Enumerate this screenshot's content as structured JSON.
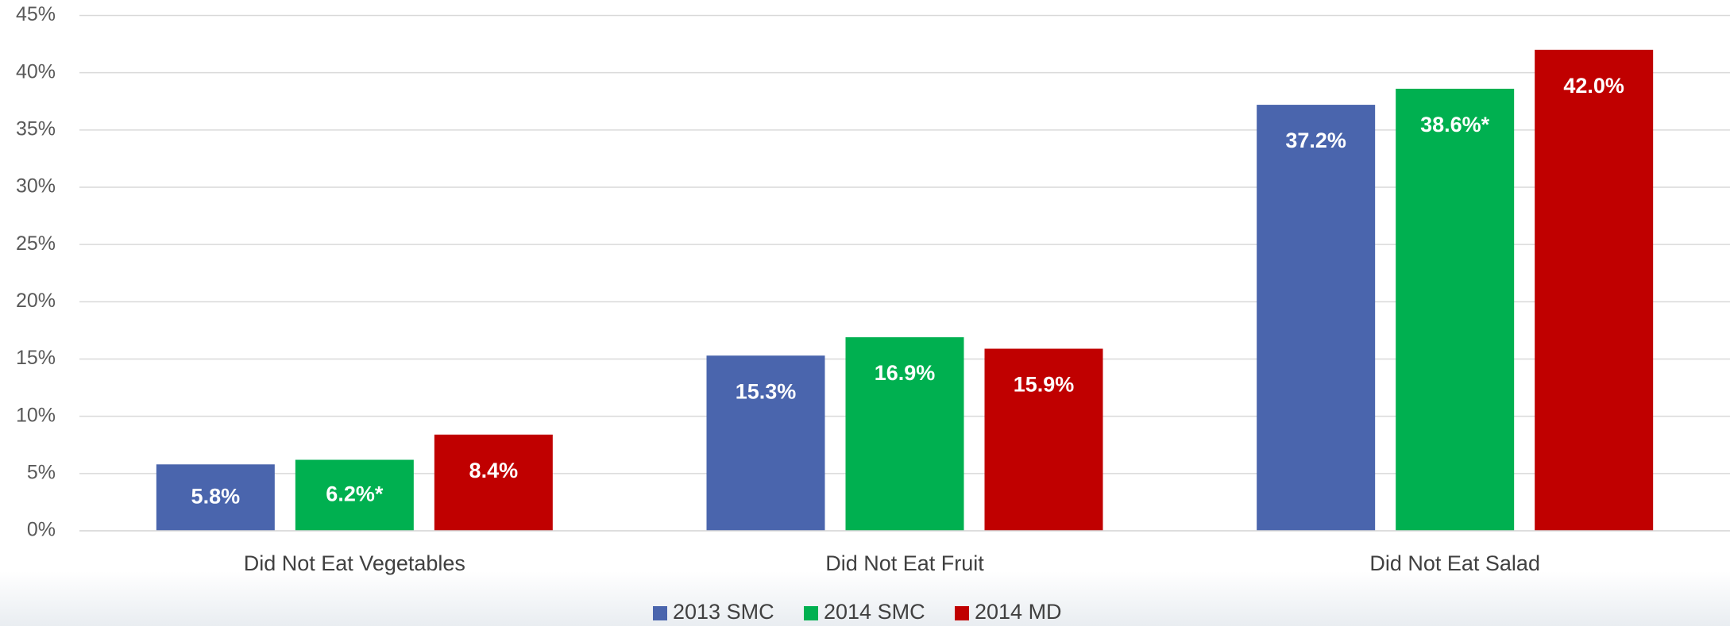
{
  "chart_data": {
    "type": "bar",
    "categories": [
      "Did Not Eat Vegetables",
      "Did Not Eat Fruit",
      "Did Not Eat Salad"
    ],
    "series": [
      {
        "name": "2013 SMC",
        "color": "#4a65ad",
        "values": [
          5.8,
          15.3,
          37.2
        ],
        "value_labels": [
          "5.8%",
          "15.3%",
          "37.2%"
        ]
      },
      {
        "name": "2014 SMC",
        "color": "#00b050",
        "values": [
          6.2,
          16.9,
          38.6
        ],
        "value_labels": [
          "6.2%*",
          "16.9%",
          "38.6%*"
        ]
      },
      {
        "name": "2014 MD",
        "color": "#c00000",
        "values": [
          8.4,
          15.9,
          42.0
        ],
        "value_labels": [
          "8.4%",
          "15.9%",
          "42.0%"
        ]
      }
    ],
    "ylim": [
      0,
      45
    ],
    "yticks": [
      {
        "value": 0,
        "label": "0%"
      },
      {
        "value": 5,
        "label": "5%"
      },
      {
        "value": 10,
        "label": "10%"
      },
      {
        "value": 15,
        "label": "15%"
      },
      {
        "value": 20,
        "label": "20%"
      },
      {
        "value": 25,
        "label": "25%"
      },
      {
        "value": 30,
        "label": "30%"
      },
      {
        "value": 35,
        "label": "35%"
      },
      {
        "value": 40,
        "label": "40%"
      },
      {
        "value": 45,
        "label": "45%"
      }
    ],
    "grid": true,
    "legend": "bottom"
  }
}
